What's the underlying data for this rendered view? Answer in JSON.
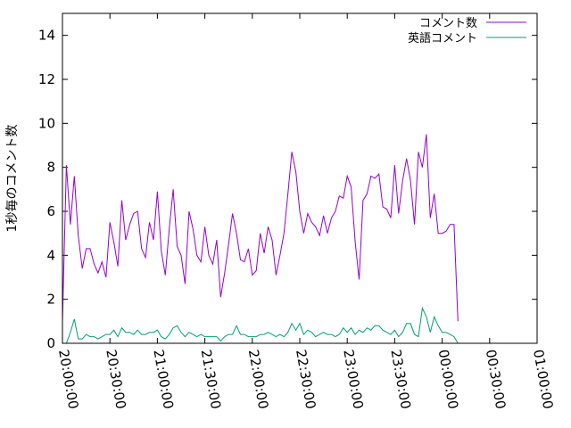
{
  "chart_data": {
    "type": "line",
    "title": "",
    "xlabel": "",
    "ylabel": "1秒毎のコメント数",
    "xlim": [
      "20:00:00",
      "01:00:00"
    ],
    "ylim": [
      0,
      15
    ],
    "yticks": [
      0,
      2,
      4,
      6,
      8,
      10,
      12,
      14
    ],
    "xticks": [
      "20:00:00",
      "20:30:00",
      "21:00:00",
      "21:30:00",
      "22:00:00",
      "22:30:00",
      "23:00:00",
      "23:30:00",
      "00:00:00",
      "00:30:00",
      "01:00:00"
    ],
    "grid": false,
    "legend_position": "top-right",
    "x_step_minutes": 2.5,
    "series": [
      {
        "name": "コメント数",
        "color": "#9400d3",
        "values": [
          1.0,
          8.1,
          5.4,
          7.6,
          4.9,
          3.4,
          4.3,
          4.3,
          3.6,
          3.2,
          3.7,
          3.0,
          5.5,
          4.6,
          3.5,
          6.5,
          4.7,
          5.4,
          5.9,
          6.0,
          4.3,
          3.9,
          5.5,
          4.7,
          6.9,
          4.2,
          3.1,
          5.2,
          7.0,
          4.4,
          4.0,
          2.7,
          6.0,
          5.2,
          4.0,
          3.7,
          5.3,
          4.0,
          3.6,
          4.7,
          2.1,
          3.2,
          4.5,
          5.9,
          5.0,
          3.8,
          3.7,
          4.3,
          3.1,
          3.3,
          5.0,
          4.1,
          5.3,
          4.7,
          3.1,
          4.0,
          5.0,
          6.8,
          8.7,
          7.8,
          6.0,
          5.0,
          5.9,
          5.5,
          5.3,
          4.9,
          5.8,
          5.0,
          5.7,
          6.0,
          6.7,
          6.6,
          7.6,
          7.1,
          4.6,
          2.9,
          6.5,
          6.8,
          7.6,
          7.5,
          7.7,
          6.2,
          6.1,
          5.7,
          8.1,
          5.9,
          7.4,
          8.4,
          7.4,
          5.4,
          8.7,
          8.0,
          9.5,
          5.7,
          6.8,
          5.0,
          5.0,
          5.1,
          5.4,
          5.4,
          1.0
        ]
      },
      {
        "name": "英語コメント",
        "color": "#009e73",
        "values": [
          0.0,
          0.0,
          0.5,
          1.1,
          0.2,
          0.2,
          0.4,
          0.3,
          0.3,
          0.2,
          0.3,
          0.4,
          0.4,
          0.6,
          0.3,
          0.7,
          0.5,
          0.5,
          0.4,
          0.6,
          0.4,
          0.4,
          0.5,
          0.5,
          0.6,
          0.3,
          0.2,
          0.4,
          0.7,
          0.8,
          0.5,
          0.3,
          0.5,
          0.4,
          0.3,
          0.4,
          0.3,
          0.3,
          0.3,
          0.3,
          0.1,
          0.3,
          0.4,
          0.4,
          0.8,
          0.4,
          0.4,
          0.3,
          0.3,
          0.3,
          0.4,
          0.4,
          0.5,
          0.4,
          0.3,
          0.4,
          0.3,
          0.5,
          0.9,
          0.6,
          0.9,
          0.4,
          0.6,
          0.5,
          0.3,
          0.4,
          0.5,
          0.4,
          0.4,
          0.3,
          0.4,
          0.7,
          0.5,
          0.7,
          0.4,
          0.6,
          0.5,
          0.7,
          0.6,
          0.8,
          0.8,
          0.6,
          0.5,
          0.4,
          0.6,
          0.3,
          0.5,
          0.9,
          0.9,
          0.4,
          0.3,
          1.6,
          1.2,
          0.5,
          1.2,
          0.8,
          0.5,
          0.5,
          0.4,
          0.3,
          0.0
        ]
      }
    ]
  }
}
